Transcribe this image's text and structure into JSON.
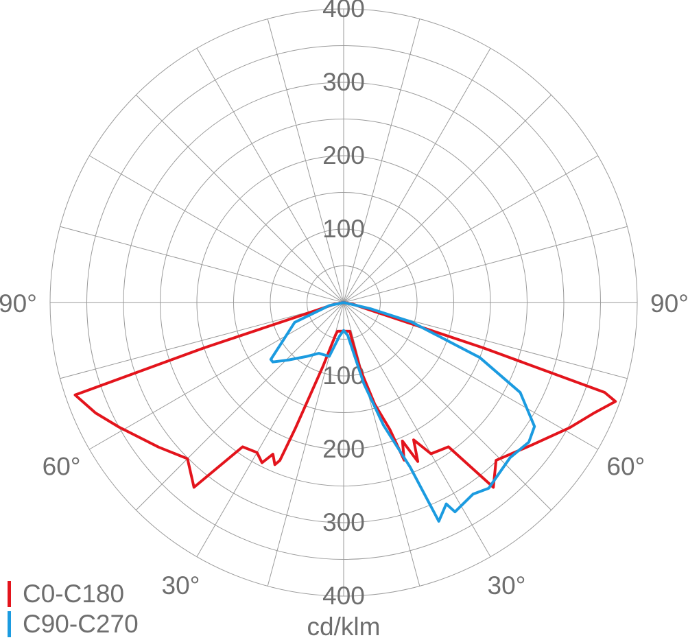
{
  "chart_data": {
    "type": "polar",
    "unit_label": "cd/klm",
    "rlim": [
      0,
      400
    ],
    "rticks": [
      100,
      200,
      300,
      400
    ],
    "minor_rticks": [
      50,
      150,
      250,
      350
    ],
    "thetaticks": [
      {
        "value": -90,
        "label": "90°"
      },
      {
        "value": -60,
        "label": "60°"
      },
      {
        "value": -30,
        "label": "30°"
      },
      {
        "value": 30,
        "label": "30°"
      },
      {
        "value": 60,
        "label": "60°"
      },
      {
        "value": 90,
        "label": "90°"
      }
    ],
    "minor_thetaticks": [
      -75,
      -45,
      -15,
      0,
      15,
      45,
      75
    ],
    "legend": "bottom-left",
    "series": [
      {
        "name": "C0-C180",
        "color": "#e3141c",
        "x": [
          -90,
          -80,
          -74,
          -72,
          -71,
          -66,
          -61,
          -52,
          -45,
          -39,
          -35,
          -30,
          -27,
          -25,
          -23,
          -22,
          -21,
          -18,
          -14,
          -12,
          0,
          12,
          14,
          17,
          20,
          21,
          23,
          25,
          27,
          30,
          36,
          39,
          44,
          53,
          61,
          66,
          70,
          71,
          72,
          74,
          80,
          90
        ],
        "values": [
          0,
          12,
          40,
          200,
          387,
          370,
          350,
          320,
          301,
          324,
          240,
          236,
          245,
          228,
          240,
          232,
          184,
          92,
          45,
          40,
          39,
          40,
          94,
          145,
          184,
          230,
          205,
          239,
          210,
          238,
          243,
          324,
          299,
          322,
          352,
          372,
          394,
          376,
          200,
          40,
          12,
          0
        ]
      },
      {
        "name": "C90-C270",
        "color": "#1b9be0",
        "x": [
          -90,
          -78,
          -68,
          -57,
          -52,
          -50,
          -44,
          -35,
          -26,
          -15,
          -7,
          0,
          7,
          14,
          18,
          22,
          23.5,
          27,
          28,
          34,
          38,
          47,
          53,
          57,
          63,
          68,
          74,
          77,
          90
        ],
        "values": [
          0,
          20,
          72,
          101,
          126,
          126,
          109,
          90,
          77,
          76,
          46,
          38,
          45,
          114,
          176,
          242,
          325,
          308,
          323,
          315,
          321,
          310,
          316,
          310,
          270,
          200,
          96,
          37,
          0
        ]
      }
    ]
  }
}
